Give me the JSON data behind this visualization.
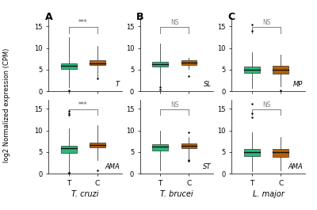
{
  "teal_color": "#2ab87a",
  "orange_color": "#b5600a",
  "bg_color": "#ffffff",
  "panel_labels": [
    "A",
    "B",
    "C"
  ],
  "col_labels": [
    "T. cruzi",
    "T. brucei",
    "L. major"
  ],
  "row_labels": [
    [
      "T",
      "SL",
      "MP"
    ],
    [
      "AMA",
      "ST",
      "AMA"
    ]
  ],
  "significance": [
    [
      "***",
      "NS",
      "NS"
    ],
    [
      "***",
      "NS",
      "NS"
    ]
  ],
  "ylabel": "log2 Normalized expression (CPM)",
  "xtick_labels": [
    "T",
    "C"
  ],
  "ylim": [
    0,
    17
  ],
  "yticks": [
    0,
    5,
    10,
    15
  ],
  "boxes": {
    "row0": {
      "col0": {
        "T": {
          "q1": 5.1,
          "med": 5.9,
          "q3": 6.5,
          "lo": 1.0,
          "hi": 12.5,
          "fliers_lo": [
            0.2
          ],
          "fliers_hi": []
        },
        "C": {
          "q1": 6.0,
          "med": 6.5,
          "q3": 7.1,
          "lo": 3.2,
          "hi": 10.5,
          "fliers_lo": [
            3.0
          ],
          "fliers_hi": []
        }
      },
      "col1": {
        "T": {
          "q1": 5.7,
          "med": 6.3,
          "q3": 6.9,
          "lo": 1.2,
          "hi": 11.0,
          "fliers_lo": [
            0.4,
            0.9
          ],
          "fliers_hi": []
        },
        "C": {
          "q1": 6.1,
          "med": 6.7,
          "q3": 7.2,
          "lo": 5.2,
          "hi": 7.8,
          "fliers_lo": [
            3.5
          ],
          "fliers_hi": []
        }
      },
      "col2": {
        "T": {
          "q1": 4.2,
          "med": 5.0,
          "q3": 5.8,
          "lo": 0.8,
          "hi": 9.0,
          "fliers_lo": [],
          "fliers_hi": [
            14.0,
            15.5
          ]
        },
        "C": {
          "q1": 4.0,
          "med": 5.0,
          "q3": 5.9,
          "lo": 1.2,
          "hi": 8.5,
          "fliers_lo": [
            0.3
          ],
          "fliers_hi": []
        }
      }
    },
    "row1": {
      "col0": {
        "T": {
          "q1": 4.8,
          "med": 5.9,
          "q3": 6.4,
          "lo": 0.3,
          "hi": 10.5,
          "fliers_lo": [
            0.05,
            0.1,
            0.15,
            0.2
          ],
          "fliers_hi": [
            13.5,
            14.0,
            14.5
          ]
        },
        "C": {
          "q1": 6.0,
          "med": 6.6,
          "q3": 7.1,
          "lo": 3.2,
          "hi": 11.2,
          "fliers_lo": [
            0.8
          ],
          "fliers_hi": []
        }
      },
      "col1": {
        "T": {
          "q1": 5.4,
          "med": 6.2,
          "q3": 6.8,
          "lo": 0.8,
          "hi": 10.0,
          "fliers_lo": [],
          "fliers_hi": []
        },
        "C": {
          "q1": 5.9,
          "med": 6.4,
          "q3": 7.0,
          "lo": 3.2,
          "hi": 8.5,
          "fliers_lo": [
            3.0,
            3.2
          ],
          "fliers_hi": [
            9.5
          ]
        }
      },
      "col2": {
        "T": {
          "q1": 4.0,
          "med": 5.0,
          "q3": 5.8,
          "lo": 0.5,
          "hi": 9.5,
          "fliers_lo": [],
          "fliers_hi": [
            13.0,
            14.0,
            16.2
          ]
        },
        "C": {
          "q1": 3.8,
          "med": 5.0,
          "q3": 5.8,
          "lo": 0.8,
          "hi": 8.5,
          "fliers_lo": [],
          "fliers_hi": []
        }
      }
    }
  }
}
